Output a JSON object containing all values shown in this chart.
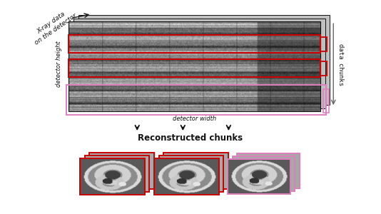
{
  "bg_color": "#ffffff",
  "red_color": "#cc0000",
  "pink_color": "#e080c0",
  "dark_color": "#111111",
  "gray_color": "#666666",
  "light_gray": "#c0c0c0",
  "title": "Reconstructed chunks",
  "label_xray": "X-ray data\non the detector",
  "label_det_height": "detector height",
  "label_det_width": "detector width",
  "label_data_chunks": "data chunks",
  "figsize": [
    5.34,
    3.0
  ],
  "dpi": 100
}
